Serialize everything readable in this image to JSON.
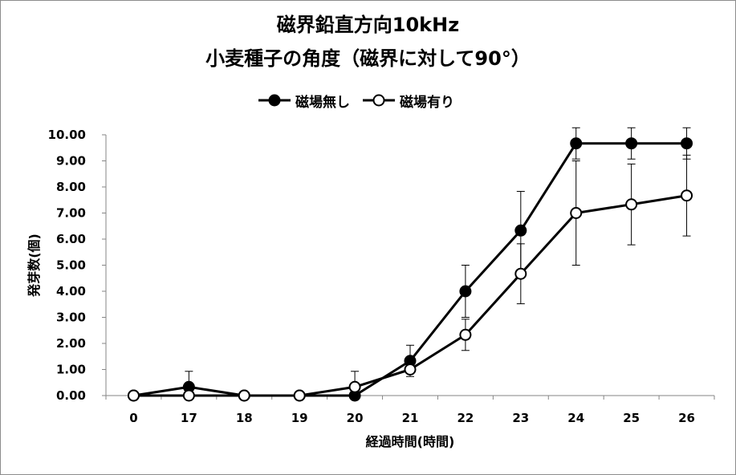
{
  "chart_data": {
    "type": "line",
    "title": "磁界鉛直方向10kHz",
    "subtitle": "小麦種子の角度（磁界に対して90°）",
    "xlabel": "経過時間(時間)",
    "ylabel": "発芽数(個)",
    "categories": [
      "0",
      "17",
      "18",
      "19",
      "20",
      "21",
      "22",
      "23",
      "24",
      "25",
      "26"
    ],
    "ylim": [
      0,
      10
    ],
    "yticks": [
      "0.00",
      "1.00",
      "2.00",
      "3.00",
      "4.00",
      "5.00",
      "6.00",
      "7.00",
      "8.00",
      "9.00",
      "10.00"
    ],
    "grid": false,
    "legend_position": "top",
    "series": [
      {
        "name": "磁場無し",
        "marker": "filled-circle",
        "color": "#000000",
        "values": [
          0,
          0.33,
          0,
          0,
          0,
          1.33,
          4.0,
          6.33,
          9.67,
          9.67,
          9.67
        ],
        "errors": [
          0,
          0.6,
          0,
          0,
          0,
          0.6,
          1.0,
          1.5,
          0.6,
          0.6,
          0.6
        ]
      },
      {
        "name": "磁場有り",
        "marker": "open-circle",
        "color": "#000000",
        "values": [
          0,
          0,
          0,
          0,
          0.33,
          1.0,
          2.33,
          4.67,
          7.0,
          7.33,
          7.67
        ],
        "errors": [
          0,
          0,
          0,
          0,
          0.6,
          0,
          0.6,
          1.15,
          2.0,
          1.55,
          1.55
        ]
      }
    ]
  }
}
